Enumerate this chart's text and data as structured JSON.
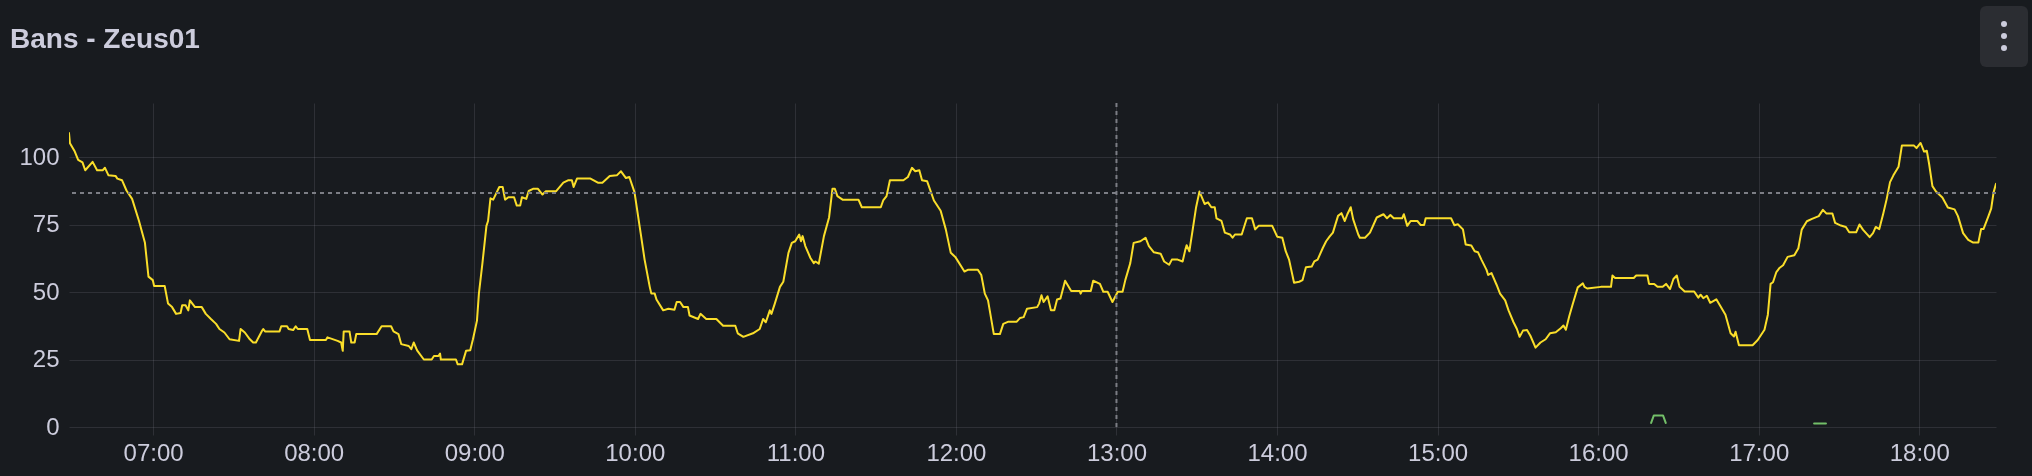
{
  "chart_data": {
    "type": "line",
    "title": "Bans - Zeus01",
    "xlim": [
      6.476,
      18.478
    ],
    "xticks": [
      {
        "value": 7,
        "label": "07:00"
      },
      {
        "value": 8,
        "label": "08:00"
      },
      {
        "value": 9,
        "label": "09:00"
      },
      {
        "value": 10,
        "label": "10:00"
      },
      {
        "value": 11,
        "label": "11:00"
      },
      {
        "value": 12,
        "label": "12:00"
      },
      {
        "value": 13,
        "label": "13:00"
      },
      {
        "value": 14,
        "label": "14:00"
      },
      {
        "value": 15,
        "label": "15:00"
      },
      {
        "value": 16,
        "label": "16:00"
      },
      {
        "value": 17,
        "label": "17:00"
      },
      {
        "value": 18,
        "label": "18:00"
      }
    ],
    "ylim": [
      0,
      120
    ],
    "yticks": [
      0,
      25,
      50,
      75,
      100
    ],
    "grid": true,
    "ref_lines": [
      {
        "axis": "y",
        "value": 86.7,
        "line_style": "dashed",
        "color": "#7c7e85"
      },
      {
        "axis": "x",
        "value": 13,
        "line_style": "dashed",
        "color": "#7c7e85"
      }
    ],
    "series": [
      {
        "color": "#fade2a",
        "x": [
          6.476,
          6.482,
          6.512,
          6.533,
          6.56,
          6.577,
          6.623,
          6.651,
          6.686,
          6.7,
          6.722,
          6.766,
          6.777,
          6.806,
          6.834,
          6.869,
          6.912,
          6.949,
          6.971,
          6.998,
          7.006,
          7.072,
          7.093,
          7.118,
          7.143,
          7.171,
          7.181,
          7.202,
          7.219,
          7.229,
          7.261,
          7.303,
          7.328,
          7.36,
          7.392,
          7.413,
          7.444,
          7.476,
          7.535,
          7.545,
          7.571,
          7.598,
          7.623,
          7.64,
          7.676,
          7.686,
          7.697,
          7.787,
          7.798,
          7.834,
          7.844,
          7.872,
          7.888,
          7.901,
          7.96,
          7.977,
          8.076,
          8.086,
          8.149,
          8.171,
          8.181,
          8.187,
          8.223,
          8.234,
          8.255,
          8.265,
          8.392,
          8.423,
          8.482,
          8.497,
          8.528,
          8.545,
          8.592,
          8.608,
          8.623,
          8.644,
          8.686,
          8.735,
          8.749,
          8.777,
          8.787,
          8.792,
          8.886,
          8.897,
          8.924,
          8.949,
          8.975,
          8.992,
          9.017,
          9.029,
          9.051,
          9.076,
          9.086,
          9.101,
          9.118,
          9.156,
          9.177,
          9.192,
          9.213,
          9.248,
          9.265,
          9.286,
          9.297,
          9.324,
          9.339,
          9.366,
          9.397,
          9.425,
          9.446,
          9.509,
          9.555,
          9.587,
          9.608,
          9.619,
          9.64,
          9.724,
          9.77,
          9.798,
          9.844,
          9.888,
          9.914,
          9.945,
          9.966,
          9.998,
          10.036,
          10.061,
          10.093,
          10.103,
          10.124,
          10.135,
          10.177,
          10.209,
          10.247,
          10.261,
          10.282,
          10.303,
          10.331,
          10.341,
          10.394,
          10.409,
          10.445,
          10.508,
          10.55,
          10.626,
          10.641,
          10.676,
          10.736,
          10.778,
          10.799,
          10.816,
          10.841,
          10.851,
          10.872,
          10.904,
          10.925,
          10.957,
          10.978,
          10.999,
          11.024,
          11.035,
          11.045,
          11.062,
          11.094,
          11.115,
          11.125,
          11.146,
          11.178,
          11.21,
          11.231,
          11.246,
          11.262,
          11.294,
          11.393,
          11.414,
          11.532,
          11.547,
          11.568,
          11.589,
          11.673,
          11.701,
          11.726,
          11.747,
          11.772,
          11.789,
          11.821,
          11.863,
          11.905,
          11.937,
          11.968,
          11.996,
          12.053,
          12.074,
          12.137,
          12.158,
          12.18,
          12.2,
          12.236,
          12.274,
          12.295,
          12.327,
          12.379,
          12.4,
          12.422,
          12.443,
          12.506,
          12.518,
          12.533,
          12.546,
          12.571,
          12.592,
          12.613,
          12.63,
          12.651,
          12.68,
          12.718,
          12.771,
          12.777,
          12.785,
          12.84,
          12.855,
          12.897,
          12.918,
          12.945,
          12.975,
          13.008,
          13.038,
          13.055,
          13.086,
          13.107,
          13.149,
          13.181,
          13.202,
          13.233,
          13.275,
          13.297,
          13.328,
          13.345,
          13.381,
          13.412,
          13.429,
          13.437,
          13.454,
          13.475,
          13.496,
          13.517,
          13.549,
          13.57,
          13.591,
          13.612,
          13.623,
          13.654,
          13.675,
          13.707,
          13.723,
          13.738,
          13.78,
          13.812,
          13.844,
          13.864,
          13.885,
          13.97,
          14.001,
          14.033,
          14.054,
          14.075,
          14.106,
          14.138,
          14.159,
          14.18,
          14.216,
          14.232,
          14.253,
          14.285,
          14.306,
          14.327,
          14.348,
          14.38,
          14.401,
          14.422,
          14.438,
          14.459,
          14.474,
          14.506,
          14.516,
          14.548,
          14.579,
          14.621,
          14.663,
          14.685,
          14.706,
          14.727,
          14.779,
          14.79,
          14.811,
          14.832,
          14.874,
          14.895,
          14.916,
          14.926,
          15.084,
          15.105,
          15.126,
          15.158,
          15.175,
          15.21,
          15.231,
          15.252,
          15.273,
          15.305,
          15.315,
          15.336,
          15.368,
          15.389,
          15.421,
          15.442,
          15.473,
          15.494,
          15.511,
          15.532,
          15.557,
          15.578,
          15.61,
          15.641,
          15.673,
          15.7,
          15.736,
          15.767,
          15.784,
          15.799,
          15.82,
          15.841,
          15.873,
          15.905,
          15.915,
          15.932,
          16.017,
          16.08,
          16.089,
          16.106,
          16.222,
          16.237,
          16.307,
          16.317,
          16.349,
          16.37,
          16.402,
          16.423,
          16.448,
          16.469,
          16.49,
          16.507,
          16.539,
          16.598,
          16.624,
          16.638,
          16.655,
          16.677,
          16.698,
          16.736,
          16.761,
          16.793,
          16.825,
          16.846,
          16.856,
          16.877,
          16.962,
          16.994,
          17.036,
          17.057,
          17.074,
          17.089,
          17.11,
          17.131,
          17.152,
          17.18,
          17.222,
          17.247,
          17.268,
          17.3,
          17.332,
          17.374,
          17.4,
          17.421,
          17.459,
          17.476,
          17.512,
          17.543,
          17.564,
          17.607,
          17.628,
          17.649,
          17.691,
          17.712,
          17.729,
          17.751,
          17.776,
          17.797,
          17.818,
          17.839,
          17.871,
          17.892,
          17.966,
          17.983,
          18.008,
          18.03,
          18.047,
          18.061,
          18.082,
          18.104,
          18.144,
          18.178,
          18.22,
          18.241,
          18.273,
          18.305,
          18.336,
          18.368,
          18.385,
          18.4,
          18.431,
          18.448,
          18.463,
          18.478
        ],
        "values": [
          108.9,
          105.1,
          102,
          98.9,
          98,
          95.1,
          98.2,
          95.1,
          95.1,
          96,
          93.2,
          93,
          92,
          91.4,
          87.6,
          84.5,
          76.3,
          68.2,
          55.7,
          54.4,
          52.2,
          52.2,
          45.7,
          44.4,
          41.9,
          42.2,
          45.1,
          45.1,
          43.2,
          46.9,
          44.4,
          44.4,
          41.9,
          40,
          38.2,
          36.3,
          35,
          32.5,
          31.9,
          36.3,
          35,
          32.8,
          31.3,
          31.3,
          35.4,
          36.3,
          35.4,
          35.4,
          37.3,
          37.3,
          36.3,
          35.9,
          37.3,
          36.3,
          36.3,
          32.2,
          32.2,
          33.2,
          31.9,
          31.3,
          28.2,
          35.4,
          35.4,
          31.3,
          31.3,
          34.4,
          34.4,
          37.3,
          37.3,
          35.4,
          34.4,
          30.7,
          30,
          28.8,
          31.3,
          28.4,
          25,
          25,
          26.3,
          26.3,
          27.2,
          25,
          25,
          23.2,
          23.2,
          28.2,
          28.4,
          32.5,
          39.4,
          49.4,
          60.7,
          74.5,
          76.3,
          84.7,
          84.2,
          88.9,
          88.9,
          84.2,
          85.1,
          85.1,
          82,
          82,
          85.1,
          84.5,
          87.4,
          88.2,
          88.2,
          86.1,
          87.3,
          87.3,
          90.5,
          91.4,
          91.4,
          88.9,
          92,
          92,
          90.5,
          90.5,
          93,
          93.2,
          94.7,
          92.2,
          92.6,
          87,
          72,
          62,
          51.9,
          49.4,
          49.4,
          47.2,
          43.2,
          43.8,
          43.4,
          46.3,
          46.3,
          44.4,
          44.4,
          41.3,
          40,
          41.9,
          40,
          40,
          37.5,
          37.5,
          34.7,
          33.4,
          34.7,
          36.3,
          40,
          38.8,
          43.2,
          41.9,
          45.7,
          51.9,
          53.8,
          64.5,
          68.2,
          68.8,
          71.3,
          68.8,
          70.7,
          67,
          62.6,
          60.7,
          61.3,
          60.5,
          70.7,
          77.6,
          88.2,
          88.2,
          85.5,
          84.2,
          84.2,
          81.4,
          81.4,
          83.9,
          85.5,
          91.4,
          91.4,
          92.6,
          96,
          94.7,
          95.1,
          91.4,
          91,
          83.9,
          80.1,
          73.2,
          64.5,
          63,
          57.6,
          58.2,
          58.2,
          56.3,
          49.4,
          46.9,
          34.4,
          34.4,
          38.2,
          39,
          39,
          40.4,
          40.7,
          43.8,
          44.4,
          45.7,
          48.8,
          46.3,
          48.4,
          43.2,
          43.2,
          47.2,
          47.6,
          54.2,
          50.4,
          50.4,
          49.4,
          50.4,
          50.4,
          54.2,
          53,
          50.1,
          50.1,
          46.3,
          50.1,
          50.1,
          54.4,
          60.7,
          68.2,
          68.8,
          70.1,
          67,
          64.7,
          64.2,
          61.3,
          60.1,
          62,
          62,
          61.3,
          65.7,
          67.3,
          65.1,
          73.2,
          81.4,
          87.2,
          82.6,
          83.2,
          81.4,
          81.4,
          77.3,
          76.3,
          72,
          71.3,
          70.1,
          71.3,
          71.3,
          77.3,
          77.3,
          73.2,
          74.5,
          74.5,
          70.5,
          70.1,
          65.1,
          62,
          53.4,
          53.8,
          54.4,
          59.2,
          59.4,
          61.3,
          62,
          66.3,
          68.8,
          70.5,
          72,
          78.2,
          79.2,
          76.3,
          78.8,
          81.4,
          77,
          71.3,
          70.1,
          70.1,
          72,
          77.6,
          78.8,
          77.3,
          78.5,
          77.3,
          77.3,
          78.8,
          74.5,
          76.3,
          76.3,
          74.8,
          74.8,
          77.3,
          77.3,
          74.7,
          75.1,
          73.2,
          67.6,
          67.2,
          65.1,
          64.7,
          62,
          58.2,
          56.3,
          57,
          52.6,
          49.4,
          46.9,
          43.2,
          38.8,
          36.3,
          33.4,
          35.7,
          35.9,
          33.8,
          29.4,
          31.3,
          32.5,
          34.7,
          35.1,
          36.6,
          37.6,
          36,
          41,
          45.4,
          51.7,
          53.2,
          51.9,
          51.3,
          51.9,
          51.9,
          56.1,
          55.2,
          55.2,
          56.1,
          56.1,
          53,
          53,
          51.9,
          51.9,
          53,
          51.1,
          54.8,
          56.1,
          51.9,
          50.2,
          50.2,
          47.9,
          49,
          47.7,
          48.6,
          46,
          47.3,
          44.8,
          41.6,
          34.7,
          33.5,
          35.3,
          30.3,
          30.3,
          32.2,
          36,
          41.6,
          53,
          53.6,
          57.4,
          59,
          59.9,
          63,
          63.6,
          66.2,
          73.1,
          76.2,
          77.1,
          78.1,
          80.4,
          79.1,
          79.1,
          75.6,
          74.6,
          74.1,
          72.1,
          72.1,
          75,
          73.1,
          70.3,
          71.8,
          74.1,
          73.3,
          79.1,
          84.4,
          90.7,
          93.2,
          96.4,
          104.3,
          104.3,
          103.3,
          105.2,
          102,
          102.3,
          97.6,
          89.2,
          87.2,
          85,
          81.3,
          80.6,
          78.1,
          71.8,
          69.3,
          68.3,
          68.3,
          73.3,
          73.3,
          78.1,
          80.9,
          86.9,
          90.1
        ]
      },
      {
        "color": "#73bf69",
        "x": [
          16.33,
          16.347,
          16.404,
          16.421,
          16.43,
          17.345,
          17.419
        ],
        "values": [
          1.5,
          4.3,
          4.3,
          1.5,
          null,
          1.3,
          1.3
        ]
      }
    ]
  }
}
